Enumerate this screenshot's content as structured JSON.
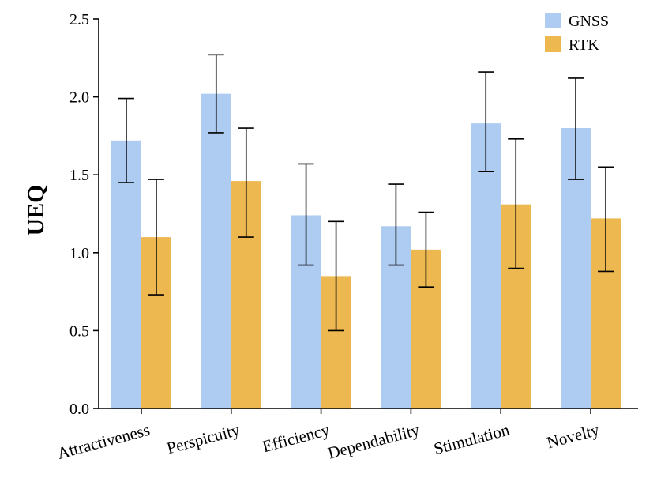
{
  "chart_data": {
    "type": "bar",
    "title": "",
    "xlabel": "",
    "ylabel": "UEQ",
    "ylim": [
      0,
      2.5
    ],
    "yticks": [
      "0.0",
      "0.5",
      "1.0",
      "1.5",
      "2.0",
      "2.5"
    ],
    "grid": false,
    "legend_position": "top-right",
    "categories": [
      "Attractiveness",
      "Perspicuity",
      "Efficiency",
      "Dependability",
      "Stimulation",
      "Novelty"
    ],
    "series": [
      {
        "name": "GNSS",
        "color": "#aecbf2",
        "values": [
          1.72,
          2.02,
          1.24,
          1.17,
          1.83,
          1.8
        ],
        "error_low": [
          1.45,
          1.77,
          0.92,
          0.92,
          1.52,
          1.47
        ],
        "error_high": [
          1.99,
          2.27,
          1.57,
          1.44,
          2.16,
          2.12
        ]
      },
      {
        "name": "RTK",
        "color": "#ecb84f",
        "values": [
          1.1,
          1.46,
          0.85,
          1.02,
          1.31,
          1.22
        ],
        "error_low": [
          0.73,
          1.1,
          0.5,
          0.78,
          0.9,
          0.88
        ],
        "error_high": [
          1.47,
          1.8,
          1.2,
          1.26,
          1.73,
          1.55
        ]
      }
    ]
  }
}
